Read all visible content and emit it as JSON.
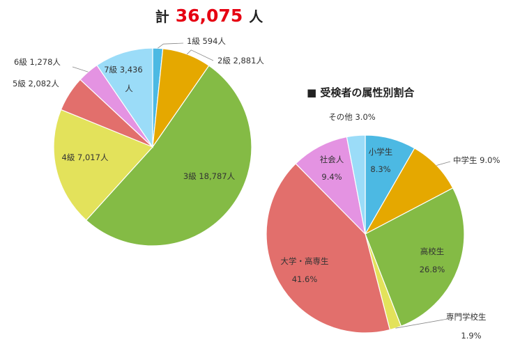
{
  "header": {
    "total_prefix": "計",
    "total_value": "36,075",
    "total_suffix": "人"
  },
  "colors": {
    "light_blue": "#9bdcf8",
    "blue": "#4cb9e3",
    "orange": "#e5a800",
    "green": "#84bb45",
    "yellow": "#e3e25b",
    "red": "#e26f6c",
    "pink": "#e493e2"
  },
  "chart_data": [
    {
      "type": "pie",
      "title": "",
      "total_label": "計 36,075人",
      "slices": [
        {
          "label": "1級 594人",
          "value": 594,
          "color": "#4cb9e3"
        },
        {
          "label": "2級 2,881人",
          "value": 2881,
          "color": "#e5a800"
        },
        {
          "label": "3級 18,787人",
          "value": 18787,
          "color": "#84bb45"
        },
        {
          "label": "4級 7,017人",
          "value": 7017,
          "color": "#e3e25b"
        },
        {
          "label": "5級 2,082人",
          "value": 2082,
          "color": "#e26f6c"
        },
        {
          "label": "6級 1,278人",
          "value": 1278,
          "color": "#e493e2"
        },
        {
          "label": "7級 3,436人",
          "value": 3436,
          "color": "#9bdcf8"
        }
      ]
    },
    {
      "type": "pie",
      "title": "■ 受検者の属性別割合",
      "unit": "%",
      "slices": [
        {
          "label": "小学生",
          "value": 8.3,
          "value_text": "8.3%",
          "color": "#4cb9e3"
        },
        {
          "label": "中学生",
          "value": 9.0,
          "value_text": "9.0%",
          "color": "#e5a800"
        },
        {
          "label": "高校生",
          "value": 26.8,
          "value_text": "26.8%",
          "color": "#84bb45"
        },
        {
          "label": "専門学校生",
          "value": 1.9,
          "value_text": "1.9%",
          "color": "#e3e25b"
        },
        {
          "label": "大学・高専生",
          "value": 41.6,
          "value_text": "41.6%",
          "color": "#e26f6c"
        },
        {
          "label": "社会人",
          "value": 9.4,
          "value_text": "9.4%",
          "color": "#e493e2"
        },
        {
          "label": "その他",
          "value": 3.0,
          "value_text": "3.0%",
          "color": "#9bdcf8"
        }
      ]
    }
  ]
}
